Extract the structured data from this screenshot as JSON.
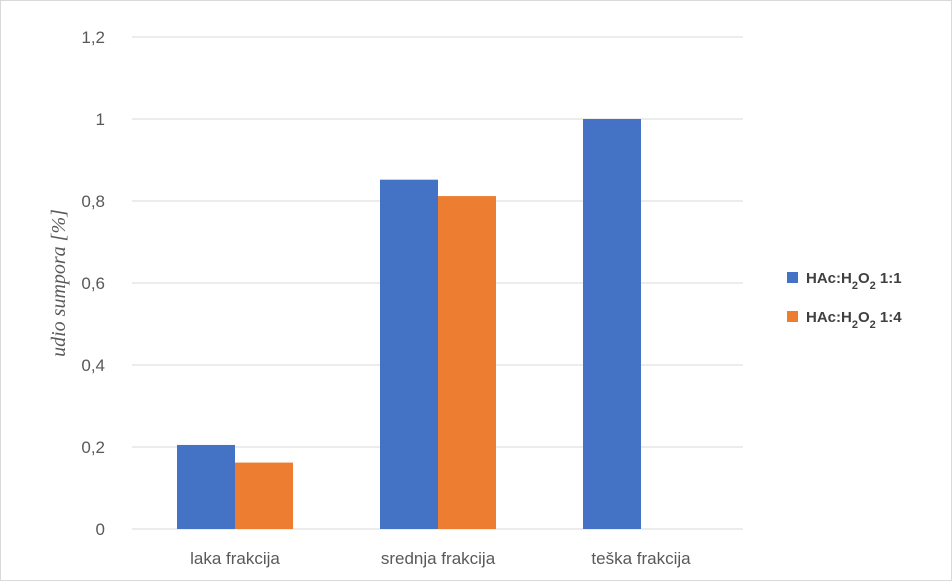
{
  "chart_data": {
    "type": "bar",
    "title": "",
    "xlabel": "",
    "ylabel": "udio sumpora [%]",
    "categories": [
      "laka frakcija",
      "srednja frakcija",
      "teška frakcija"
    ],
    "series": [
      {
        "name": "HAc:H2O2 1:1",
        "name_parts": {
          "pre": "HAc:H",
          "sub1": "2",
          "mid": "O",
          "sub2": "2",
          "post": " 1:1"
        },
        "color": "#4472c4",
        "values": [
          0.205,
          0.852,
          1.0
        ]
      },
      {
        "name": "HAc:H2O2 1:4",
        "name_parts": {
          "pre": "HAc:H",
          "sub1": "2",
          "mid": "O",
          "sub2": "2",
          "post": " 1:4"
        },
        "color": "#ed7d31",
        "values": [
          0.162,
          0.812,
          null
        ]
      }
    ],
    "ylim": [
      0,
      1.2
    ],
    "yticks": [
      "0",
      "0,2",
      "0,4",
      "0,6",
      "0,8",
      "1",
      "1,2"
    ],
    "ytick_values": [
      0,
      0.2,
      0.4,
      0.6,
      0.8,
      1.0,
      1.2
    ],
    "grid": true,
    "gridline_color": "#d9d9d9",
    "legend_position": "right"
  }
}
